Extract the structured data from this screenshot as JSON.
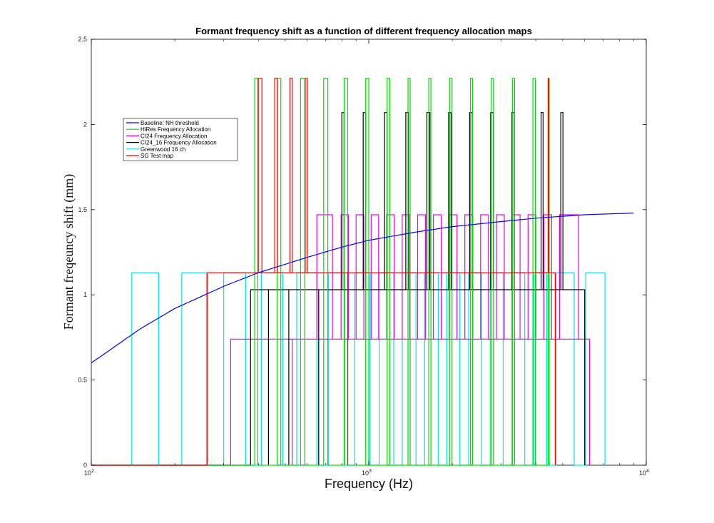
{
  "chart_data": {
    "type": "line",
    "title": "Formant frequency shift as a function of different frequency allocation maps",
    "xlabel": "Frequency (Hz)",
    "ylabel": "Formant freqeuncy shift (mm)",
    "xscale": "log",
    "xlim": [
      100,
      10000
    ],
    "ylim": [
      0,
      2.5
    ],
    "xticks": [
      {
        "value": 100,
        "base": "10",
        "exp": "2"
      },
      {
        "value": 1000,
        "base": "10",
        "exp": "3"
      },
      {
        "value": 10000,
        "base": "10",
        "exp": "4"
      }
    ],
    "yticks": [
      {
        "value": 0,
        "label": "0"
      },
      {
        "value": 0.5,
        "label": "0.5"
      },
      {
        "value": 1,
        "label": "1"
      },
      {
        "value": 1.5,
        "label": "1.5"
      },
      {
        "value": 2,
        "label": "2"
      },
      {
        "value": 2.5,
        "label": "2.5"
      }
    ],
    "grid": false,
    "legend_position": "top-left",
    "series": [
      {
        "name": "Baseline: NH threshold",
        "color": "#0000ff",
        "style": "curve",
        "x": [
          100,
          150,
          200,
          300,
          400,
          600,
          800,
          1000,
          1500,
          2000,
          3000,
          4000,
          6000,
          9000
        ],
        "y": [
          0.6,
          0.8,
          0.92,
          1.05,
          1.13,
          1.22,
          1.28,
          1.32,
          1.37,
          1.4,
          1.43,
          1.45,
          1.47,
          1.48
        ]
      },
      {
        "name": "HiRes Frequency Allocation",
        "color": "#00dd00",
        "style": "pulses",
        "base": 0,
        "high": 2.27,
        "pulses": [
          [
            388,
            398
          ],
          [
            468,
            482
          ],
          [
            568,
            588
          ],
          [
            688,
            712
          ],
          [
            815,
            840
          ],
          [
            975,
            1000
          ],
          [
            1165,
            1190
          ],
          [
            1385,
            1410
          ],
          [
            1645,
            1675
          ],
          [
            1955,
            1995
          ],
          [
            2325,
            2365
          ],
          [
            2765,
            2815
          ],
          [
            3295,
            3355
          ],
          [
            3905,
            3985
          ],
          [
            4430,
            4470
          ]
        ]
      },
      {
        "name": "CI24 Frequency Allocation",
        "color": "#ee00ee",
        "style": "bistable",
        "base": 0,
        "low": 0.74,
        "high": 1.47,
        "start": 318,
        "end": 6250,
        "segments": [
          {
            "level": "low",
            "from": 318,
            "to": 530
          },
          {
            "level": "high",
            "from": 650,
            "to": 740
          },
          {
            "level": "high",
            "from": 795,
            "to": 845
          },
          {
            "level": "high",
            "from": 900,
            "to": 960
          },
          {
            "level": "high",
            "from": 1020,
            "to": 1085
          },
          {
            "level": "high",
            "from": 1160,
            "to": 1235
          },
          {
            "level": "high",
            "from": 1320,
            "to": 1405
          },
          {
            "level": "high",
            "from": 1500,
            "to": 1600
          },
          {
            "level": "high",
            "from": 1710,
            "to": 1825
          },
          {
            "level": "high",
            "from": 1950,
            "to": 2080
          },
          {
            "level": "high",
            "from": 2220,
            "to": 2370
          },
          {
            "level": "high",
            "from": 2530,
            "to": 2700
          },
          {
            "level": "high",
            "from": 2885,
            "to": 3080
          },
          {
            "level": "high",
            "from": 3290,
            "to": 3510
          },
          {
            "level": "high",
            "from": 3750,
            "to": 4000
          },
          {
            "level": "high",
            "from": 4275,
            "to": 4560
          },
          {
            "level": "high",
            "from": 4870,
            "to": 5700
          }
        ]
      },
      {
        "name": "CI24_16 Frequency Allocation",
        "color": "#000000",
        "style": "bistable",
        "base": 0,
        "low": 1.03,
        "high": 2.07,
        "start": 375,
        "end": 6000,
        "segments": [
          {
            "level": "low",
            "from": 375,
            "to": 435
          },
          {
            "level": "low",
            "from": 515,
            "to": 660
          },
          {
            "level": "high",
            "from": 800,
            "to": 815
          },
          {
            "level": "high",
            "from": 955,
            "to": 975
          },
          {
            "level": "high",
            "from": 1140,
            "to": 1165
          },
          {
            "level": "high",
            "from": 1360,
            "to": 1390
          },
          {
            "level": "high",
            "from": 1620,
            "to": 1660
          },
          {
            "level": "high",
            "from": 1940,
            "to": 1980
          },
          {
            "level": "high",
            "from": 2310,
            "to": 2360
          },
          {
            "level": "high",
            "from": 2750,
            "to": 2810
          },
          {
            "level": "high",
            "from": 3280,
            "to": 3350
          },
          {
            "level": "high",
            "from": 4180,
            "to": 4250
          },
          {
            "level": "high",
            "from": 4920,
            "to": 5010
          }
        ]
      },
      {
        "name": "Greenwood 16 ch",
        "color": "#00e5e5",
        "style": "pulses",
        "base": 0,
        "high": 1.13,
        "pulses": [
          [
            140,
            175
          ],
          [
            212,
            260
          ],
          [
            300,
            360
          ],
          [
            410,
            490
          ],
          [
            550,
            650
          ],
          [
            715,
            820
          ],
          [
            890,
            1010
          ],
          [
            1090,
            1230
          ],
          [
            1320,
            1480
          ],
          [
            1590,
            1780
          ],
          [
            1910,
            2130
          ],
          [
            2290,
            2550
          ],
          [
            2740,
            3050
          ],
          [
            3280,
            3650
          ],
          [
            3930,
            4380
          ],
          [
            4730,
            5500
          ],
          [
            6050,
            7100
          ]
        ]
      },
      {
        "name": "SG Test map",
        "color": "#ff0000",
        "style": "bistable",
        "base": 0,
        "low": 1.13,
        "high": 2.27,
        "start": 262,
        "end": 4700,
        "segments": [
          {
            "level": "high",
            "from": 400,
            "to": 412
          },
          {
            "level": "high",
            "from": 458,
            "to": 468
          },
          {
            "level": "high",
            "from": 520,
            "to": 530
          },
          {
            "level": "high",
            "from": 590,
            "to": 600
          },
          {
            "level": "low",
            "from": 262,
            "to": 840
          },
          {
            "level": "high",
            "from": 4430,
            "to": 4450
          }
        ]
      }
    ]
  }
}
